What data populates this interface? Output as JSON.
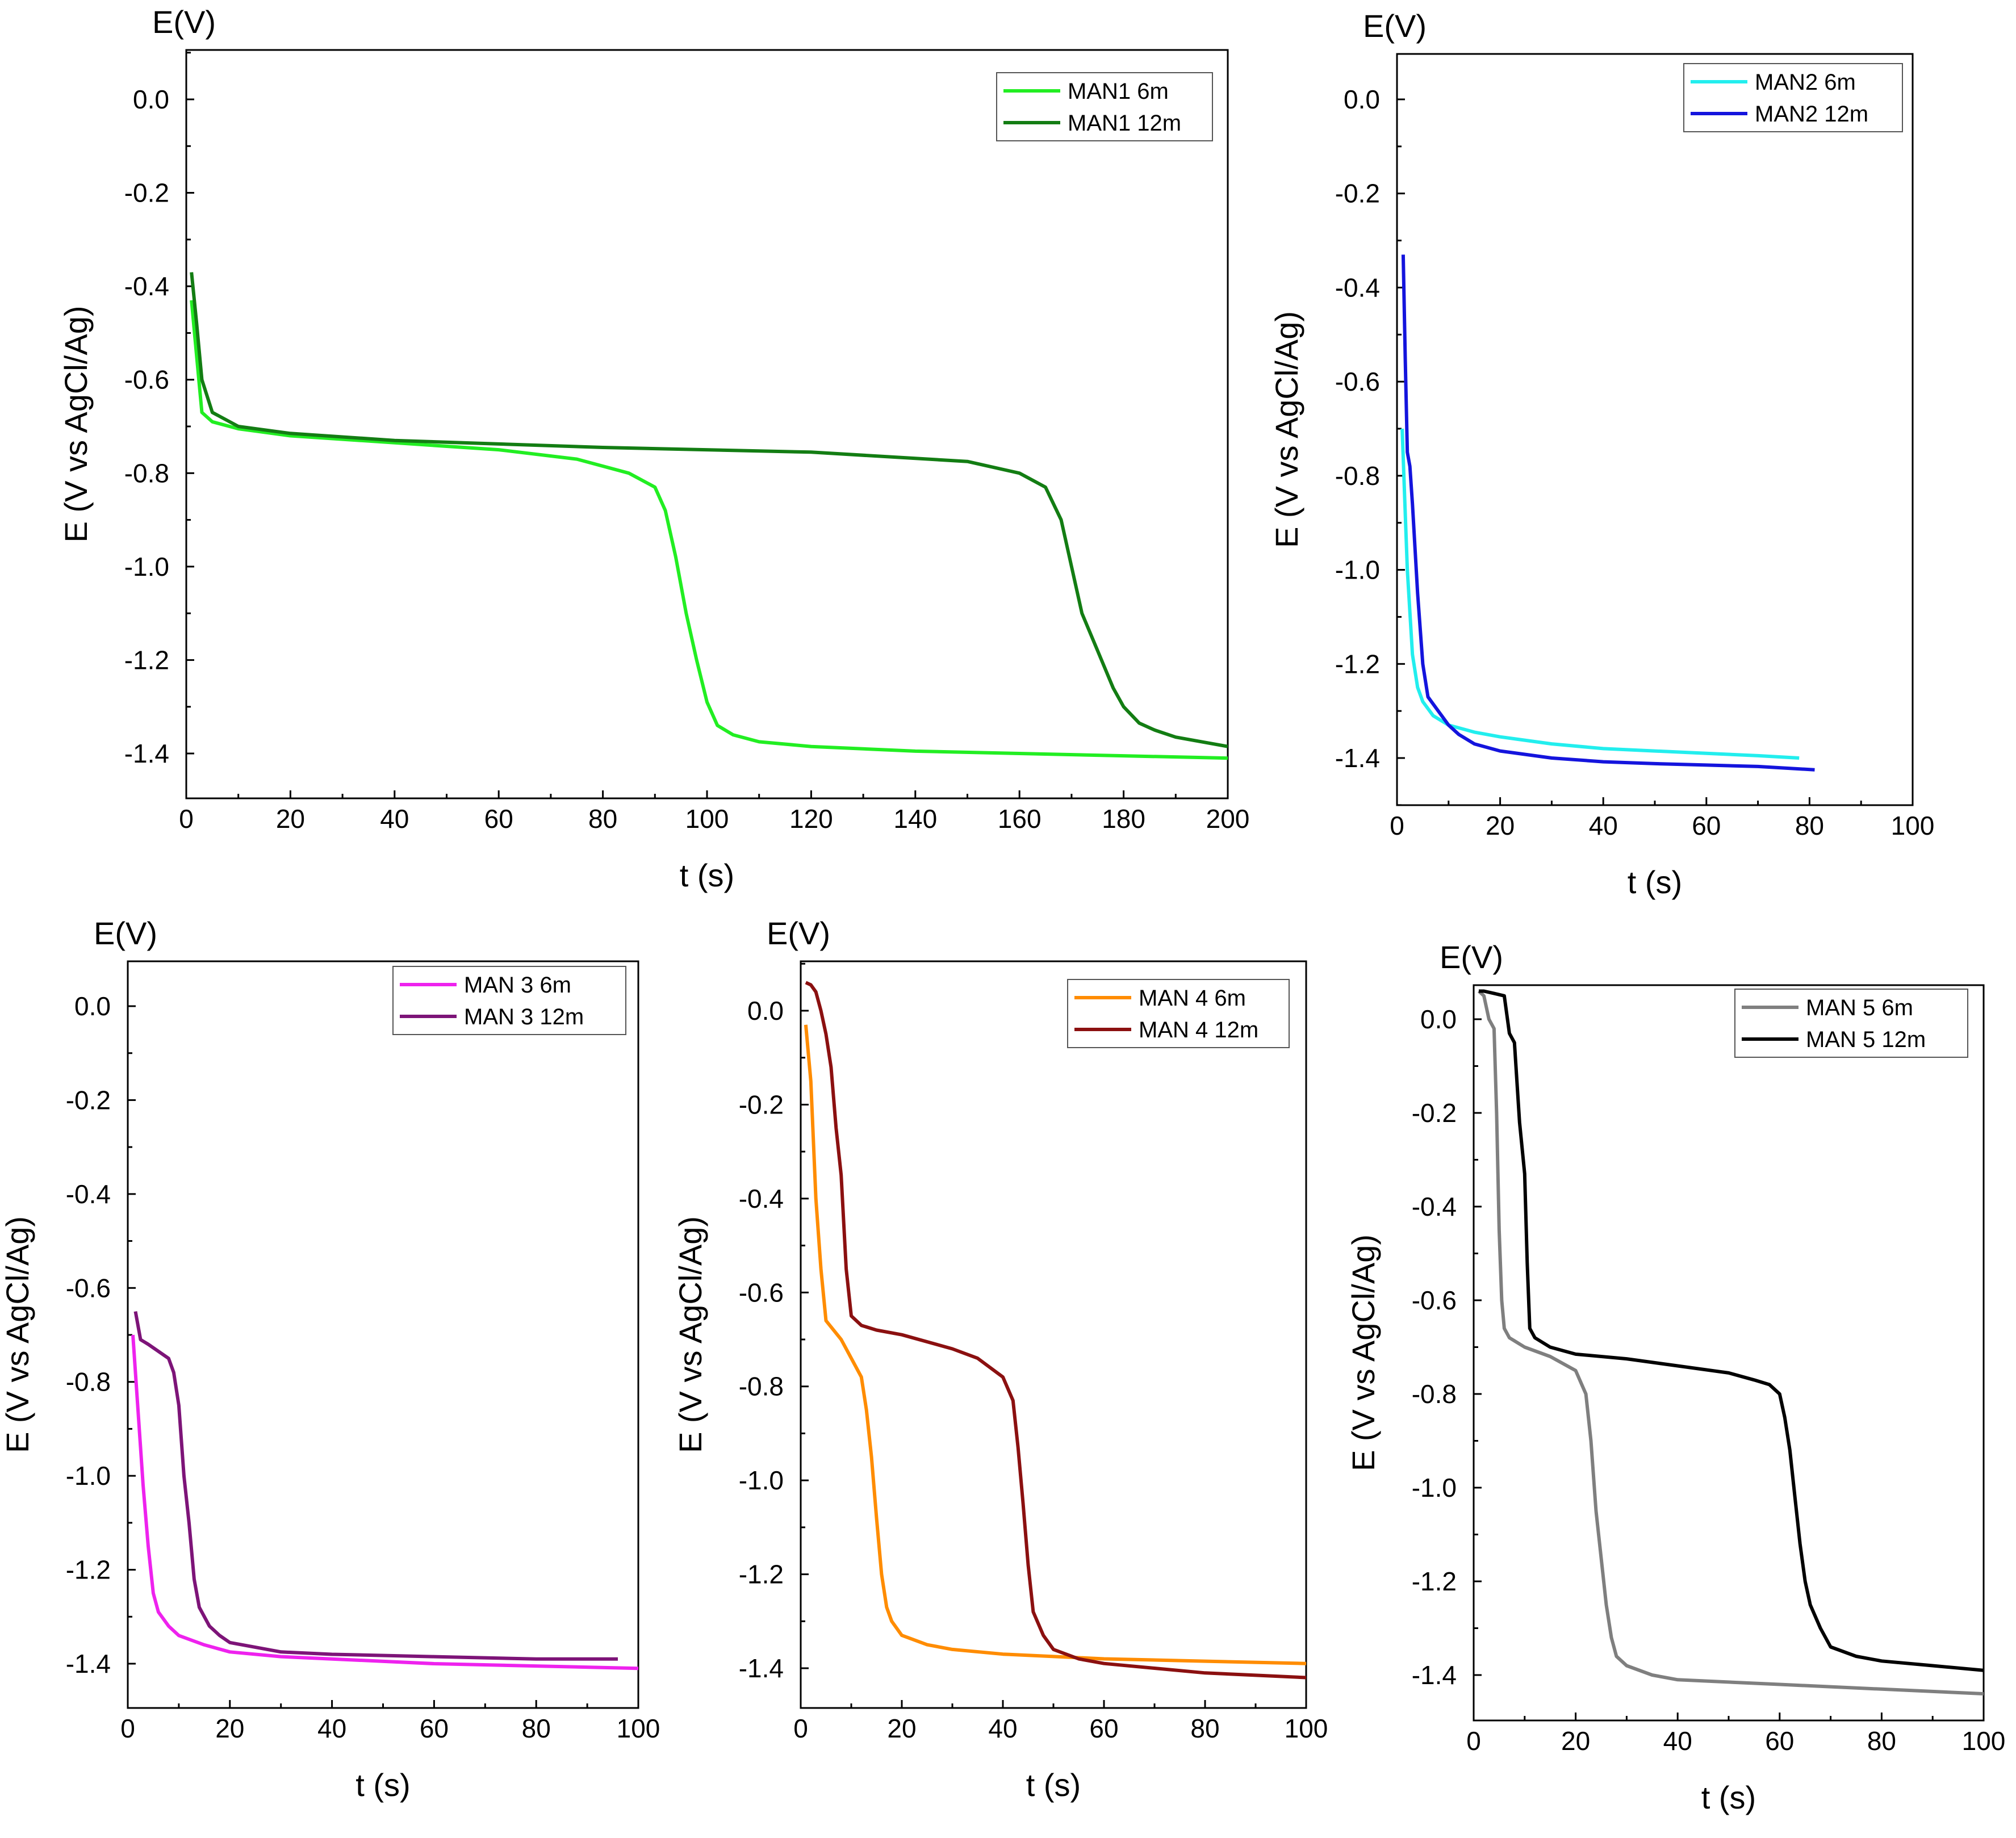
{
  "figure": {
    "description_free": true
  },
  "chart_data": [
    {
      "id": "man1",
      "type": "line",
      "corner_label": "E(V)",
      "xlabel": "t (s)",
      "ylabel": "E (V vs AgCl/Ag)",
      "xlim": [
        0,
        200
      ],
      "ylim": [
        -1.5,
        0.1
      ],
      "xticks": [
        0,
        20,
        40,
        60,
        80,
        100,
        120,
        140,
        160,
        180,
        200
      ],
      "yticks": [
        0.0,
        -0.2,
        -0.4,
        -0.6,
        -0.8,
        -1.0,
        -1.2,
        -1.4
      ],
      "ytick_labels": [
        "0.0",
        "-0.2",
        "-0.4",
        "-0.6",
        "-0.8",
        "-1.0",
        "-1.2",
        "-1.4"
      ],
      "legend_position": "top-right",
      "series": [
        {
          "name": "MAN1 6m",
          "color": "#22ee22",
          "x": [
            1,
            2,
            3,
            5,
            10,
            20,
            40,
            60,
            75,
            85,
            90,
            92,
            94,
            96,
            98,
            100,
            102,
            105,
            110,
            120,
            140,
            160,
            180,
            200
          ],
          "y": [
            -0.43,
            -0.55,
            -0.67,
            -0.69,
            -0.705,
            -0.72,
            -0.735,
            -0.75,
            -0.77,
            -0.8,
            -0.83,
            -0.88,
            -0.98,
            -1.1,
            -1.2,
            -1.29,
            -1.34,
            -1.36,
            -1.375,
            -1.385,
            -1.395,
            -1.4,
            -1.405,
            -1.41
          ]
        },
        {
          "name": "MAN1 12m",
          "color": "#137d13",
          "x": [
            1,
            2,
            3,
            5,
            10,
            20,
            40,
            80,
            120,
            150,
            160,
            165,
            168,
            170,
            172,
            175,
            178,
            180,
            183,
            186,
            190,
            195,
            200
          ],
          "y": [
            -0.37,
            -0.48,
            -0.6,
            -0.67,
            -0.7,
            -0.715,
            -0.73,
            -0.745,
            -0.755,
            -0.775,
            -0.8,
            -0.83,
            -0.9,
            -1.0,
            -1.1,
            -1.18,
            -1.26,
            -1.3,
            -1.335,
            -1.35,
            -1.365,
            -1.375,
            -1.385
          ]
        }
      ]
    },
    {
      "id": "man2",
      "type": "line",
      "corner_label": "E(V)",
      "xlabel": "t (s)",
      "ylabel": "E (V vs AgCl/Ag)",
      "xlim": [
        0,
        100
      ],
      "ylim": [
        -1.5,
        0.1
      ],
      "xticks": [
        0,
        20,
        40,
        60,
        80,
        100
      ],
      "yticks": [
        0.0,
        -0.2,
        -0.4,
        -0.6,
        -0.8,
        -1.0,
        -1.2,
        -1.4
      ],
      "ytick_labels": [
        "0.0",
        "-0.2",
        "-0.4",
        "-0.6",
        "-0.8",
        "-1.0",
        "-1.2",
        "-1.4"
      ],
      "legend_position": "top-right",
      "series": [
        {
          "name": "MAN2 6m",
          "color": "#22eeee",
          "x": [
            1,
            1.5,
            2,
            3,
            4,
            5,
            7,
            10,
            15,
            20,
            30,
            40,
            50,
            60,
            70,
            78
          ],
          "y": [
            -0.7,
            -0.85,
            -1.0,
            -1.18,
            -1.25,
            -1.28,
            -1.31,
            -1.33,
            -1.345,
            -1.355,
            -1.37,
            -1.38,
            -1.385,
            -1.39,
            -1.395,
            -1.4
          ]
        },
        {
          "name": "MAN2 12m",
          "color": "#1414dd",
          "x": [
            1.2,
            1.6,
            2,
            2.5,
            3,
            4,
            5,
            6,
            8,
            10,
            12,
            15,
            20,
            30,
            40,
            50,
            60,
            70,
            81
          ],
          "y": [
            -0.33,
            -0.55,
            -0.75,
            -0.78,
            -0.86,
            -1.05,
            -1.2,
            -1.27,
            -1.3,
            -1.33,
            -1.35,
            -1.37,
            -1.385,
            -1.4,
            -1.408,
            -1.412,
            -1.415,
            -1.418,
            -1.425
          ]
        }
      ]
    },
    {
      "id": "man3",
      "type": "line",
      "corner_label": "E(V)",
      "xlabel": "t (s)",
      "ylabel": "E (V vs AgCl/Ag)",
      "xlim": [
        0,
        100
      ],
      "ylim": [
        -1.5,
        0.1
      ],
      "xticks": [
        0,
        20,
        40,
        60,
        80,
        100
      ],
      "yticks": [
        0.0,
        -0.2,
        -0.4,
        -0.6,
        -0.8,
        -1.0,
        -1.2,
        -1.4
      ],
      "ytick_labels": [
        "0.0",
        "-0.2",
        "-0.4",
        "-0.6",
        "-0.8",
        "-1.0",
        "-1.2",
        "-1.4"
      ],
      "legend_position": "top-right",
      "series": [
        {
          "name": "MAN 3 6m",
          "color": "#ee22ee",
          "x": [
            1,
            2,
            3,
            4,
            5,
            6,
            8,
            10,
            15,
            20,
            30,
            40,
            60,
            80,
            100
          ],
          "y": [
            -0.7,
            -0.86,
            -1.02,
            -1.15,
            -1.25,
            -1.29,
            -1.32,
            -1.34,
            -1.36,
            -1.375,
            -1.385,
            -1.39,
            -1.4,
            -1.405,
            -1.41
          ]
        },
        {
          "name": "MAN 3 12m",
          "color": "#7d1478",
          "x": [
            1.5,
            2.5,
            4,
            6,
            8,
            9,
            10,
            11,
            12,
            13,
            14,
            16,
            18,
            20,
            25,
            30,
            40,
            60,
            80,
            96
          ],
          "y": [
            -0.65,
            -0.71,
            -0.72,
            -0.735,
            -0.75,
            -0.78,
            -0.85,
            -1.0,
            -1.1,
            -1.22,
            -1.28,
            -1.32,
            -1.34,
            -1.355,
            -1.365,
            -1.375,
            -1.38,
            -1.385,
            -1.39,
            -1.39
          ]
        }
      ]
    },
    {
      "id": "man4",
      "type": "line",
      "corner_label": "E(V)",
      "xlabel": "t (s)",
      "ylabel": "E (V vs AgCl/Ag)",
      "xlim": [
        0,
        100
      ],
      "ylim": [
        -1.5,
        0.1
      ],
      "xticks": [
        0,
        20,
        40,
        60,
        80,
        100
      ],
      "yticks": [
        0.0,
        -0.2,
        -0.4,
        -0.6,
        -0.8,
        -1.0,
        -1.2,
        -1.4
      ],
      "ytick_labels": [
        "0.0",
        "-0.2",
        "-0.4",
        "-0.6",
        "-0.8",
        "-1.0",
        "-1.2",
        "-1.4"
      ],
      "legend_position": "top-right",
      "series": [
        {
          "name": "MAN 4 6m",
          "color": "#ff8c00",
          "x": [
            1,
            2,
            3,
            4,
            5,
            8,
            10,
            12,
            13,
            14,
            15,
            16,
            17,
            18,
            20,
            25,
            30,
            40,
            60,
            80,
            100
          ],
          "y": [
            -0.03,
            -0.15,
            -0.4,
            -0.55,
            -0.66,
            -0.7,
            -0.74,
            -0.78,
            -0.85,
            -0.95,
            -1.08,
            -1.2,
            -1.27,
            -1.3,
            -1.33,
            -1.35,
            -1.36,
            -1.37,
            -1.38,
            -1.385,
            -1.39
          ]
        },
        {
          "name": "MAN 4 12m",
          "color": "#8b1010",
          "x": [
            1,
            2,
            3,
            4,
            5,
            6,
            7,
            8,
            9,
            10,
            12,
            15,
            20,
            30,
            35,
            40,
            42,
            43,
            44,
            45,
            46,
            48,
            50,
            55,
            60,
            70,
            80,
            90,
            100
          ],
          "y": [
            0.06,
            0.055,
            0.04,
            0.0,
            -0.05,
            -0.12,
            -0.25,
            -0.35,
            -0.55,
            -0.65,
            -0.67,
            -0.68,
            -0.69,
            -0.72,
            -0.74,
            -0.78,
            -0.83,
            -0.93,
            -1.05,
            -1.18,
            -1.28,
            -1.33,
            -1.36,
            -1.38,
            -1.39,
            -1.4,
            -1.41,
            -1.415,
            -1.42
          ]
        }
      ]
    },
    {
      "id": "man5",
      "type": "line",
      "corner_label": "E(V)",
      "xlabel": "t (s)",
      "ylabel": "E (V vs AgCl/Ag)",
      "xlim": [
        0,
        100
      ],
      "ylim": [
        -1.5,
        0.1
      ],
      "xticks": [
        0,
        20,
        40,
        60,
        80,
        100
      ],
      "yticks": [
        0.0,
        -0.2,
        -0.4,
        -0.6,
        -0.8,
        -1.0,
        -1.2,
        -1.4
      ],
      "ytick_labels": [
        "0.0",
        "-0.2",
        "-0.4",
        "-0.6",
        "-0.8",
        "-1.0",
        "-1.2",
        "-1.4"
      ],
      "legend_position": "top-right",
      "series": [
        {
          "name": "MAN 5 6m",
          "color": "#7f7f7f",
          "x": [
            1,
            2,
            3,
            4,
            4.5,
            5,
            5.5,
            6,
            7,
            10,
            15,
            20,
            22,
            23,
            24,
            25,
            26,
            27,
            28,
            30,
            35,
            40,
            60,
            80,
            100
          ],
          "y": [
            0.06,
            0.05,
            0.0,
            -0.02,
            -0.2,
            -0.45,
            -0.6,
            -0.66,
            -0.68,
            -0.7,
            -0.72,
            -0.75,
            -0.8,
            -0.9,
            -1.05,
            -1.15,
            -1.25,
            -1.32,
            -1.36,
            -1.38,
            -1.4,
            -1.41,
            -1.42,
            -1.43,
            -1.44
          ]
        },
        {
          "name": "MAN 5 12m",
          "color": "#000000",
          "x": [
            1,
            2,
            4,
            6,
            7,
            8,
            9,
            10,
            10.5,
            11,
            12,
            15,
            20,
            30,
            40,
            50,
            55,
            58,
            60,
            61,
            62,
            63,
            64,
            65,
            66,
            68,
            70,
            75,
            80,
            90,
            100
          ],
          "y": [
            0.06,
            0.06,
            0.055,
            0.05,
            -0.03,
            -0.05,
            -0.22,
            -0.33,
            -0.52,
            -0.66,
            -0.68,
            -0.7,
            -0.715,
            -0.725,
            -0.74,
            -0.755,
            -0.77,
            -0.78,
            -0.8,
            -0.85,
            -0.92,
            -1.02,
            -1.12,
            -1.2,
            -1.25,
            -1.3,
            -1.34,
            -1.36,
            -1.37,
            -1.38,
            -1.39
          ]
        }
      ]
    }
  ]
}
